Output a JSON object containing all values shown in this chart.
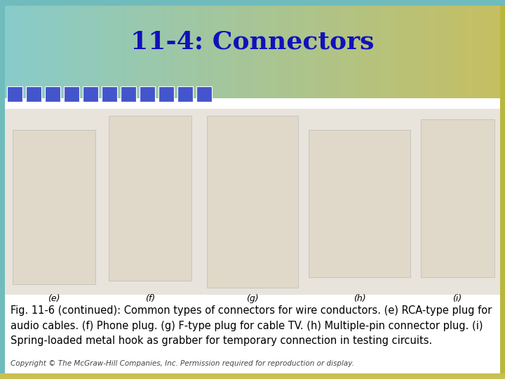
{
  "title": "11-4: Connectors",
  "title_color": "#1111BB",
  "title_fontsize": 26,
  "bg_main": "#FFFFFF",
  "teal_bar_color": "#88CCCC",
  "olive_color": "#B8B840",
  "blue_sq_color": "#4455CC",
  "blue_sq_count": 11,
  "caption_main": "Fig. 11-6 (",
  "caption_continued": "continued",
  "caption_rest": "): Common types of connectors for wire conductors. (",
  "caption_e": "e",
  "caption_e_rest": ") RCA-type plug for audio cables. (",
  "caption_f": "f",
  "caption_f_rest": ") Phone plug. (",
  "caption_g": "g",
  "caption_g_rest": ") F-type plug for cable TV. (",
  "caption_h": "h",
  "caption_h_rest": ") Multiple-pin connector plug. (",
  "caption_i": "i",
  "caption_i_rest": ") Spring-loaded metal hook as grabber for temporary connection in testing circuits.",
  "caption_fontsize": 10.5,
  "copyright_text": "Copyright © The McGraw-Hill Companies, Inc. Permission required for reproduction or display.",
  "copyright_fontsize": 7.5,
  "labels": [
    "(e)",
    "(f)",
    "(g)",
    "(h)",
    "(i)"
  ],
  "label_fontsize": 9,
  "img_bg_color": "#E8E4DC",
  "img_placeholder_color": "#D0C8B8"
}
